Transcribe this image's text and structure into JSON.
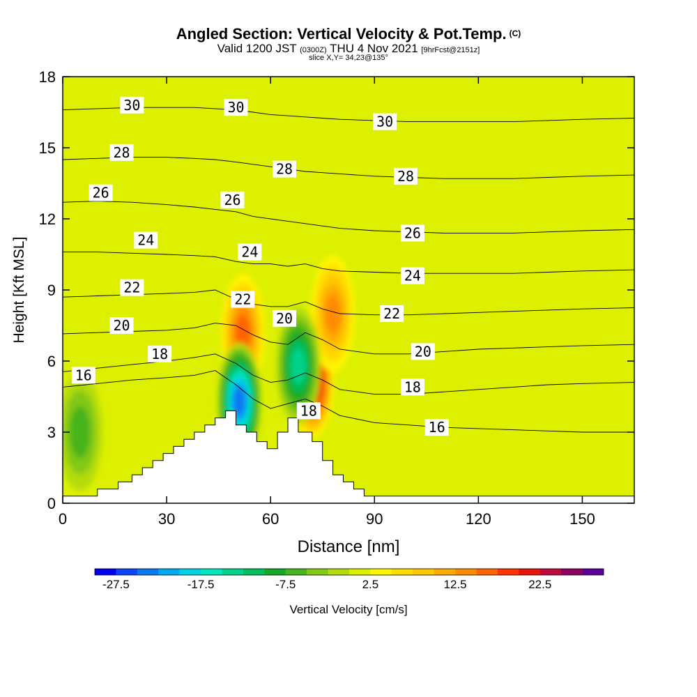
{
  "title": {
    "main": "Angled Section: Vertical Velocity & Pot.Temp.",
    "main_mark": "(C)",
    "valid_prefix": "Valid 1200 JST",
    "valid_utc": "(0300Z)",
    "valid_date": "THU 4 Nov 2021",
    "valid_run": "[9hrFcst@2151z]",
    "slice": "slice X,Y= 34,23@135°"
  },
  "chart_data": {
    "type": "heatmap",
    "xlabel": "Distance [nm]",
    "ylabel": "Height [Kft MSL]",
    "xlim": [
      0,
      165
    ],
    "ylim": [
      0,
      18
    ],
    "x_ticks": [
      "0",
      "30",
      "60",
      "90",
      "120",
      "150"
    ],
    "x_tick_values": [
      0,
      30,
      60,
      90,
      120,
      150
    ],
    "y_ticks": [
      "0",
      "3",
      "6",
      "9",
      "12",
      "15",
      "18"
    ],
    "y_tick_values": [
      0,
      3,
      6,
      9,
      12,
      15,
      18
    ],
    "colorbar": {
      "label": "Vertical Velocity [cm/s]",
      "tick_labels": [
        "-27.5",
        "-17.5",
        "-7.5",
        "2.5",
        "12.5",
        "22.5"
      ],
      "levels": [
        -30,
        -27.5,
        -25,
        -22.5,
        -20,
        -17.5,
        -15,
        -12.5,
        -10,
        -7.5,
        -5,
        -2.5,
        0,
        2.5,
        5,
        7.5,
        10,
        12.5,
        15,
        17.5,
        20,
        22.5,
        25,
        27.5
      ],
      "colors": [
        "#0000f0",
        "#0a46f5",
        "#0a78f0",
        "#00aaf0",
        "#00d2e6",
        "#00e6be",
        "#00d28c",
        "#00be5a",
        "#14aa28",
        "#46b41e",
        "#82c814",
        "#b4dc0a",
        "#dcf000",
        "#fff500",
        "#ffdc00",
        "#ffc800",
        "#ffaa00",
        "#ff8c00",
        "#ff6400",
        "#ff3200",
        "#e6140a",
        "#be0a3c",
        "#8c0064",
        "#5a0096"
      ]
    },
    "isentropes": {
      "units": "Pot.Temp. (C)",
      "contours": [
        {
          "theta": 16,
          "label": "16",
          "x": [
            0,
            10,
            20,
            30,
            38,
            44,
            50,
            55,
            60,
            65,
            70,
            75,
            80,
            90,
            100,
            110,
            120,
            130,
            140,
            150,
            165
          ],
          "y": [
            4.9,
            5.05,
            5.2,
            5.3,
            5.4,
            5.6,
            5.0,
            4.4,
            4.0,
            4.2,
            4.4,
            4.1,
            3.7,
            3.4,
            3.3,
            3.2,
            3.15,
            3.1,
            3.05,
            3.0,
            3.0
          ]
        },
        {
          "theta": 18,
          "label": "18",
          "x": [
            0,
            10,
            20,
            30,
            38,
            44,
            50,
            55,
            60,
            65,
            70,
            75,
            80,
            90,
            100,
            110,
            120,
            130,
            140,
            150,
            165
          ],
          "y": [
            5.55,
            5.7,
            5.85,
            6.0,
            6.15,
            6.3,
            5.9,
            5.4,
            5.1,
            5.2,
            5.5,
            5.2,
            4.8,
            4.6,
            4.6,
            4.7,
            4.8,
            4.9,
            5.0,
            5.05,
            5.1
          ]
        },
        {
          "theta": 20,
          "label": "20",
          "x": [
            0,
            10,
            20,
            30,
            38,
            44,
            50,
            55,
            60,
            65,
            70,
            75,
            80,
            90,
            100,
            110,
            120,
            130,
            140,
            150,
            165
          ],
          "y": [
            7.15,
            7.2,
            7.25,
            7.3,
            7.4,
            7.6,
            7.5,
            7.1,
            6.8,
            6.7,
            7.2,
            6.9,
            6.5,
            6.3,
            6.3,
            6.4,
            6.5,
            6.55,
            6.6,
            6.65,
            6.7
          ]
        },
        {
          "theta": 22,
          "label": "22",
          "x": [
            0,
            10,
            20,
            30,
            38,
            44,
            50,
            55,
            60,
            65,
            70,
            75,
            80,
            90,
            100,
            110,
            120,
            130,
            140,
            150,
            165
          ],
          "y": [
            8.7,
            8.75,
            8.8,
            8.85,
            8.9,
            9.0,
            8.6,
            8.4,
            8.3,
            8.3,
            8.5,
            8.2,
            8.0,
            7.95,
            7.95,
            8.0,
            8.05,
            8.1,
            8.15,
            8.2,
            8.25
          ]
        },
        {
          "theta": 24,
          "label": "24",
          "x": [
            0,
            10,
            20,
            30,
            38,
            44,
            50,
            55,
            60,
            65,
            70,
            75,
            80,
            90,
            100,
            110,
            120,
            130,
            140,
            150,
            165
          ],
          "y": [
            10.6,
            10.6,
            10.55,
            10.5,
            10.45,
            10.4,
            10.2,
            10.1,
            10.1,
            10.0,
            10.1,
            9.9,
            9.8,
            9.75,
            9.7,
            9.7,
            9.7,
            9.7,
            9.75,
            9.8,
            9.85
          ]
        },
        {
          "theta": 26,
          "label": "26",
          "x": [
            0,
            10,
            20,
            30,
            38,
            44,
            50,
            55,
            60,
            65,
            70,
            75,
            80,
            90,
            100,
            110,
            120,
            130,
            140,
            150,
            165
          ],
          "y": [
            12.7,
            12.75,
            12.7,
            12.6,
            12.5,
            12.4,
            12.3,
            12.1,
            12.0,
            11.9,
            11.8,
            11.7,
            11.6,
            11.5,
            11.45,
            11.4,
            11.4,
            11.4,
            11.45,
            11.5,
            11.55
          ]
        },
        {
          "theta": 28,
          "label": "28",
          "x": [
            0,
            10,
            20,
            30,
            38,
            44,
            50,
            55,
            60,
            65,
            70,
            75,
            80,
            90,
            100,
            110,
            120,
            130,
            140,
            150,
            165
          ],
          "y": [
            14.5,
            14.55,
            14.6,
            14.6,
            14.55,
            14.5,
            14.4,
            14.3,
            14.2,
            14.1,
            14.0,
            13.95,
            13.9,
            13.8,
            13.75,
            13.7,
            13.7,
            13.7,
            13.75,
            13.8,
            13.85
          ]
        },
        {
          "theta": 30,
          "label": "30",
          "x": [
            0,
            10,
            20,
            30,
            38,
            44,
            50,
            55,
            60,
            65,
            70,
            75,
            80,
            90,
            100,
            110,
            120,
            130,
            140,
            150,
            165
          ],
          "y": [
            16.6,
            16.65,
            16.7,
            16.7,
            16.7,
            16.65,
            16.6,
            16.5,
            16.4,
            16.35,
            16.3,
            16.25,
            16.2,
            16.15,
            16.1,
            16.1,
            16.1,
            16.1,
            16.15,
            16.2,
            16.25
          ]
        }
      ],
      "inline_labels": [
        {
          "label": "30",
          "x": 20,
          "y": 16.8
        },
        {
          "label": "30",
          "x": 50,
          "y": 16.7
        },
        {
          "label": "30",
          "x": 93,
          "y": 16.1
        },
        {
          "label": "28",
          "x": 17,
          "y": 14.8
        },
        {
          "label": "28",
          "x": 64,
          "y": 14.1
        },
        {
          "label": "28",
          "x": 99,
          "y": 13.8
        },
        {
          "label": "26",
          "x": 11,
          "y": 13.1
        },
        {
          "label": "26",
          "x": 49,
          "y": 12.8
        },
        {
          "label": "26",
          "x": 101,
          "y": 11.4
        },
        {
          "label": "24",
          "x": 24,
          "y": 11.1
        },
        {
          "label": "24",
          "x": 54,
          "y": 10.6
        },
        {
          "label": "24",
          "x": 101,
          "y": 9.6
        },
        {
          "label": "22",
          "x": 20,
          "y": 9.1
        },
        {
          "label": "22",
          "x": 52,
          "y": 8.6
        },
        {
          "label": "22",
          "x": 95,
          "y": 8.0
        },
        {
          "label": "20",
          "x": 17,
          "y": 7.5
        },
        {
          "label": "20",
          "x": 64,
          "y": 7.8
        },
        {
          "label": "20",
          "x": 104,
          "y": 6.4
        },
        {
          "label": "18",
          "x": 28,
          "y": 6.3
        },
        {
          "label": "18",
          "x": 71,
          "y": 3.9
        },
        {
          "label": "18",
          "x": 101,
          "y": 4.9
        },
        {
          "label": "16",
          "x": 6,
          "y": 5.4
        },
        {
          "label": "16",
          "x": 108,
          "y": 3.2
        }
      ]
    },
    "terrain": {
      "x": [
        0,
        10,
        10,
        16,
        16,
        20,
        20,
        23,
        23,
        26,
        26,
        29,
        29,
        32,
        32,
        35,
        35,
        38,
        38,
        41,
        41,
        44,
        44,
        47,
        47,
        50,
        50,
        53,
        53,
        56,
        56,
        59,
        59,
        62,
        62,
        65,
        65,
        68,
        68,
        72,
        72,
        75,
        75,
        78,
        78,
        81,
        81,
        84,
        84,
        87,
        87,
        90,
        90,
        165
      ],
      "y": [
        0.3,
        0.3,
        0.6,
        0.6,
        0.9,
        0.9,
        1.2,
        1.2,
        1.5,
        1.5,
        1.8,
        1.8,
        2.1,
        2.1,
        2.4,
        2.4,
        2.7,
        2.7,
        3.0,
        3.0,
        3.3,
        3.3,
        3.6,
        3.6,
        3.9,
        3.9,
        3.3,
        3.3,
        3.0,
        3.0,
        2.6,
        2.6,
        2.3,
        2.3,
        3.0,
        3.0,
        3.6,
        3.6,
        3.0,
        3.0,
        2.6,
        2.6,
        1.8,
        1.8,
        1.2,
        1.2,
        0.9,
        0.9,
        0.6,
        0.6,
        0.3,
        0.3,
        0.3,
        0.3
      ]
    },
    "vv_features": [
      {
        "kind": "updraft",
        "x": 72,
        "y": 5.2,
        "w_cm_s": 25
      },
      {
        "kind": "updraft",
        "x": 52,
        "y": 7.2,
        "w_cm_s": 15
      },
      {
        "kind": "updraft",
        "x": 78,
        "y": 8.0,
        "w_cm_s": 12
      },
      {
        "kind": "downdraft",
        "x": 51,
        "y": 4.3,
        "w_cm_s": -25
      },
      {
        "kind": "downdraft",
        "x": 68,
        "y": 5.8,
        "w_cm_s": -15
      },
      {
        "kind": "downdraft",
        "x": 5,
        "y": 3.0,
        "w_cm_s": -8
      }
    ]
  }
}
